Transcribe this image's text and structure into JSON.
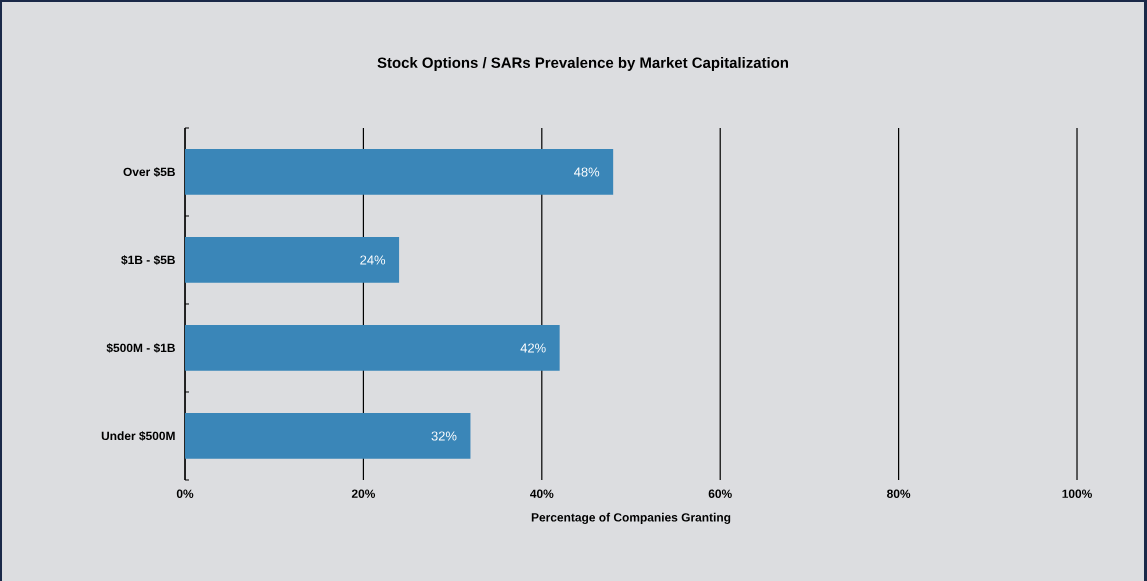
{
  "chart_data": {
    "type": "bar",
    "orientation": "horizontal",
    "title": "Stock Options / SARs Prevalence by Market Capitalization",
    "xlabel": "Percentage of Companies Granting",
    "categories": [
      "Over $5B",
      "$1B - $5B",
      "$500M - $1B",
      "Under $500M"
    ],
    "values": [
      48,
      24,
      42,
      32
    ],
    "value_labels": [
      "48%",
      "24%",
      "42%",
      "32%"
    ],
    "color": "#3a86b8",
    "xlim": [
      0,
      100
    ],
    "xticks": [
      {
        "value": 0,
        "label": "0%"
      },
      {
        "value": 20,
        "label": "20%"
      },
      {
        "value": 40,
        "label": "40%"
      },
      {
        "value": 60,
        "label": "60%"
      },
      {
        "value": 80,
        "label": "80%"
      },
      {
        "value": 100,
        "label": "100%"
      }
    ],
    "grid": "x"
  }
}
